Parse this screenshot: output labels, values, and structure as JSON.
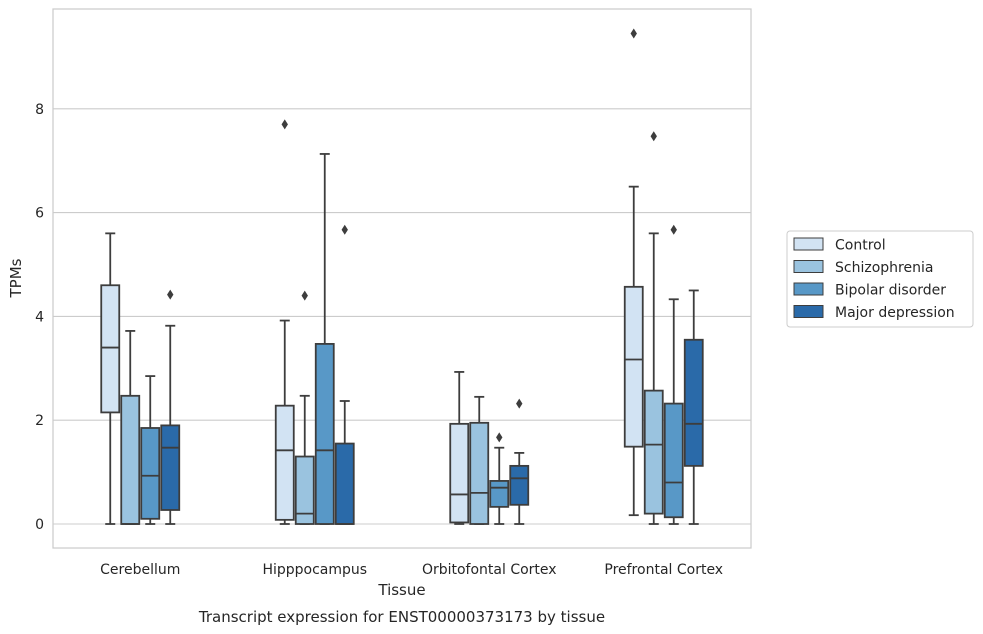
{
  "chart_data": {
    "type": "box",
    "title": "",
    "caption": "Transcript expression for ENST00000373173 by tissue",
    "xlabel": "Tissue",
    "ylabel": "TPMs",
    "ylim": [
      -0.45,
      9.9
    ],
    "yticks": [
      0,
      2,
      4,
      6,
      8
    ],
    "grid": "horizontal",
    "legend_position": "right",
    "categories": [
      "Cerebellum",
      "Hipppocampus",
      "Orbitofontal Cortex",
      "Prefrontal Cortex"
    ],
    "series": [
      {
        "name": "Control",
        "color": "#d2e3f3",
        "boxes": [
          {
            "whislo": 0.0,
            "q1": 2.15,
            "med": 3.4,
            "q3": 4.6,
            "whishi": 5.6,
            "fliers": []
          },
          {
            "whislo": 0.0,
            "q1": 0.08,
            "med": 1.42,
            "q3": 2.28,
            "whishi": 3.92,
            "fliers": [
              7.7
            ]
          },
          {
            "whislo": 0.0,
            "q1": 0.03,
            "med": 0.57,
            "q3": 1.93,
            "whishi": 2.93,
            "fliers": []
          },
          {
            "whislo": 0.17,
            "q1": 1.49,
            "med": 3.17,
            "q3": 4.57,
            "whishi": 6.5,
            "fliers": [
              9.45
            ]
          }
        ]
      },
      {
        "name": "Schizophrenia",
        "color": "#9ac3df",
        "boxes": [
          {
            "whislo": 0.0,
            "q1": 0.0,
            "med": 0.0,
            "q3": 2.47,
            "whishi": 3.72,
            "fliers": []
          },
          {
            "whislo": 0.0,
            "q1": 0.0,
            "med": 0.2,
            "q3": 1.3,
            "whishi": 2.47,
            "fliers": [
              4.4
            ]
          },
          {
            "whislo": 0.0,
            "q1": 0.0,
            "med": 0.6,
            "q3": 1.95,
            "whishi": 2.45,
            "fliers": []
          },
          {
            "whislo": 0.0,
            "q1": 0.2,
            "med": 1.53,
            "q3": 2.57,
            "whishi": 5.6,
            "fliers": [
              7.47
            ]
          }
        ]
      },
      {
        "name": "Bipolar disorder",
        "color": "#5898c7",
        "boxes": [
          {
            "whislo": 0.0,
            "q1": 0.1,
            "med": 0.93,
            "q3": 1.85,
            "whishi": 2.85,
            "fliers": []
          },
          {
            "whislo": 0.0,
            "q1": 0.0,
            "med": 1.42,
            "q3": 3.47,
            "whishi": 7.13,
            "fliers": []
          },
          {
            "whislo": 0.0,
            "q1": 0.33,
            "med": 0.7,
            "q3": 0.83,
            "whishi": 1.47,
            "fliers": [
              1.67
            ]
          },
          {
            "whislo": 0.0,
            "q1": 0.13,
            "med": 0.8,
            "q3": 2.32,
            "whishi": 4.33,
            "fliers": [
              5.67
            ]
          }
        ]
      },
      {
        "name": "Major depression",
        "color": "#2a6aa9",
        "boxes": [
          {
            "whislo": 0.0,
            "q1": 0.27,
            "med": 1.47,
            "q3": 1.9,
            "whishi": 3.82,
            "fliers": [
              4.42
            ]
          },
          {
            "whislo": 0.0,
            "q1": 0.0,
            "med": 0.0,
            "q3": 1.55,
            "whishi": 2.37,
            "fliers": [
              5.67
            ]
          },
          {
            "whislo": 0.0,
            "q1": 0.37,
            "med": 0.88,
            "q3": 1.12,
            "whishi": 1.37,
            "fliers": [
              2.32
            ]
          },
          {
            "whislo": 0.0,
            "q1": 1.12,
            "med": 1.93,
            "q3": 3.55,
            "whishi": 4.5,
            "fliers": []
          }
        ]
      }
    ]
  }
}
